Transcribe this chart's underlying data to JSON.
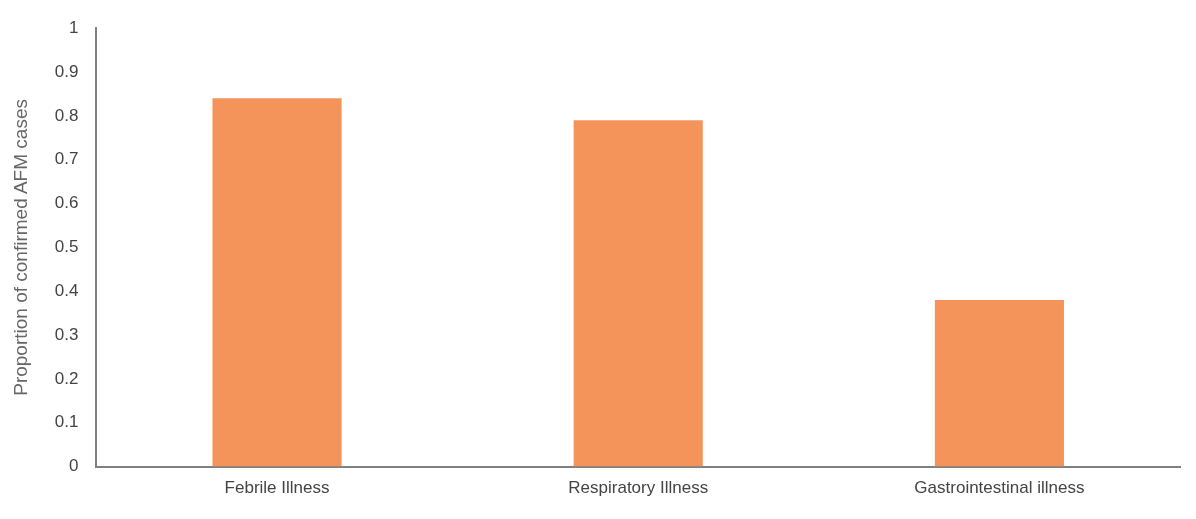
{
  "chart_data": {
    "type": "bar",
    "ylabel": "Proportion of confirmed AFM cases",
    "categories": [
      "Febrile Illness",
      "Respiratory Illness",
      "Gastrointestinal illness"
    ],
    "values": [
      0.84,
      0.79,
      0.38
    ],
    "color": "#f4945a",
    "ylim": [
      0,
      1
    ],
    "yticks": [
      0,
      0.1,
      0.2,
      0.3,
      0.4,
      0.5,
      0.6,
      0.7,
      0.8,
      0.9,
      1
    ],
    "grid": false,
    "legend": false
  }
}
